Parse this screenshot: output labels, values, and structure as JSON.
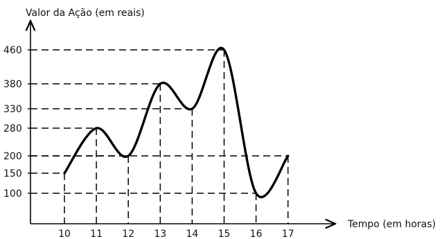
{
  "chart_data": {
    "type": "line",
    "ylabel": "Valor da Ação (em reais)",
    "xlabel": "Tempo (em horas)",
    "x_ticks": [
      10,
      11,
      12,
      13,
      14,
      15,
      16,
      17
    ],
    "y_ticks": [
      100,
      150,
      200,
      280,
      330,
      380,
      460
    ],
    "points": [
      {
        "x": 10,
        "y": 150
      },
      {
        "x": 11,
        "y": 280
      },
      {
        "x": 12,
        "y": 200
      },
      {
        "x": 13,
        "y": 380
      },
      {
        "x": 14,
        "y": 330
      },
      {
        "x": 15,
        "y": 460
      },
      {
        "x": 16,
        "y": 100
      },
      {
        "x": 17,
        "y": 200
      }
    ],
    "grid": "dashed guides from each point to both axes",
    "line_color": "#000000"
  }
}
